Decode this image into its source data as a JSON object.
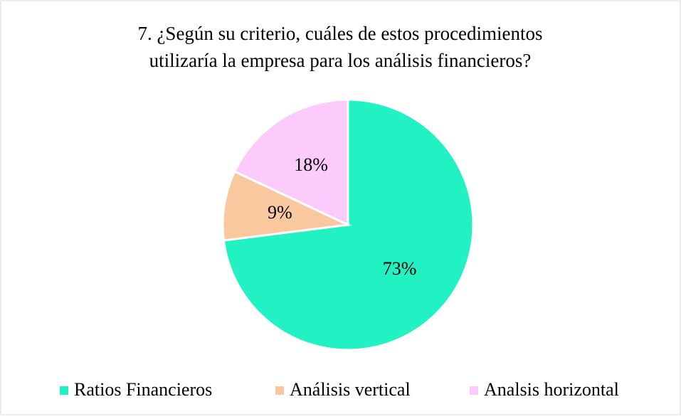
{
  "chart_data": {
    "type": "pie",
    "title": [
      "7. ¿Según su criterio, cuáles de estos procedimientos",
      "utilizaría la empresa para los análisis financieros?"
    ],
    "categories": [
      "Ratios Financieros",
      "Análisis vertical",
      "Analsis horizontal"
    ],
    "values": [
      73,
      9,
      18
    ],
    "value_labels": [
      "73%",
      "9%",
      "18%"
    ],
    "colors": [
      "#22f2c3",
      "#fac89e",
      "#fccbfb"
    ],
    "legend": "bottom"
  }
}
